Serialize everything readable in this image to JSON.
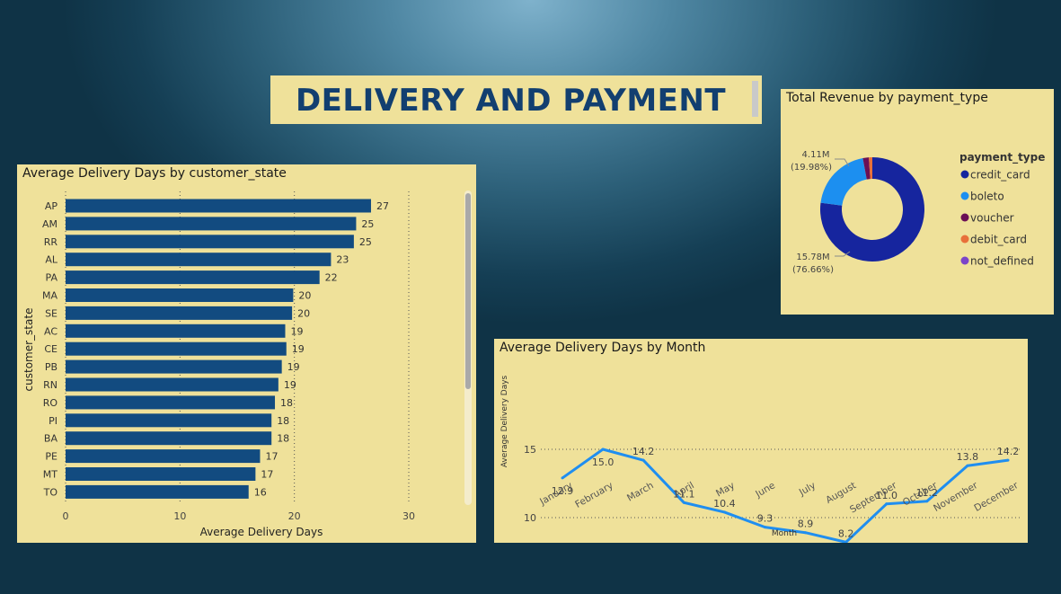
{
  "header": {
    "title": "DELIVERY AND PAYMENT"
  },
  "colors": {
    "panel_bg": "#efe19a",
    "bar": "#124b80",
    "line": "#1f8ef0",
    "title": "#123f70"
  },
  "chart_data": [
    {
      "type": "bar",
      "orientation": "horizontal",
      "title": "Average Delivery Days by customer_state",
      "xlabel": "Average Delivery Days",
      "ylabel": "customer_state",
      "xlim": [
        0,
        30
      ],
      "xticks": [
        0,
        10,
        20,
        30
      ],
      "grid": "vertical dotted",
      "categories": [
        "AP",
        "AM",
        "RR",
        "AL",
        "PA",
        "MA",
        "SE",
        "AC",
        "CE",
        "PB",
        "RN",
        "RO",
        "PI",
        "BA",
        "PE",
        "MT",
        "TO"
      ],
      "values": [
        26.7,
        25.4,
        25.2,
        23.2,
        22.2,
        19.9,
        19.8,
        19.2,
        19.3,
        18.9,
        18.6,
        18.3,
        18.0,
        18.0,
        17.0,
        16.6,
        16.0
      ],
      "data_labels": [
        "27",
        "25",
        "25",
        "23",
        "22",
        "20",
        "20",
        "19",
        "19",
        "19",
        "19",
        "18",
        "18",
        "18",
        "17",
        "17",
        "16"
      ]
    },
    {
      "type": "pie",
      "variant": "donut",
      "title": "Total Revenue by payment_type",
      "legend_title": "payment_type",
      "legend_position": "right",
      "slices": [
        {
          "name": "credit_card",
          "value": 15.78,
          "percent": 76.66,
          "color": "#16259e"
        },
        {
          "name": "boleto",
          "value": 4.11,
          "percent": 19.98,
          "color": "#1c8ff0"
        },
        {
          "name": "voucher",
          "value": 0.38,
          "percent": 1.85,
          "color": "#6b0f55"
        },
        {
          "name": "debit_card",
          "value": 0.22,
          "percent": 1.06,
          "color": "#e8703a"
        },
        {
          "name": "not_defined",
          "value": 0.0,
          "percent": 0.0,
          "color": "#7b44c9"
        }
      ],
      "labels": [
        {
          "value": "4.11M",
          "percent": "(19.98%)"
        },
        {
          "value": "15.78M",
          "percent": "(76.66%)"
        }
      ]
    },
    {
      "type": "line",
      "title": "Average Delivery Days by Month",
      "xlabel": "Month",
      "ylabel": "Average Delivery Days",
      "yticks": [
        10,
        15
      ],
      "grid": "horizontal dotted",
      "categories": [
        "January",
        "February",
        "March",
        "April",
        "May",
        "June",
        "July",
        "August",
        "September",
        "October",
        "November",
        "December"
      ],
      "values": [
        12.9,
        15.0,
        14.2,
        11.1,
        10.4,
        9.3,
        8.9,
        8.2,
        11.0,
        11.2,
        13.8,
        14.2
      ],
      "data_labels": [
        "12.9",
        "15.0",
        "14.2",
        "11.1",
        "10.4",
        "9.3",
        "8.9",
        "8.2",
        "11.0",
        "11.2",
        "13.8",
        "14.2"
      ]
    }
  ]
}
